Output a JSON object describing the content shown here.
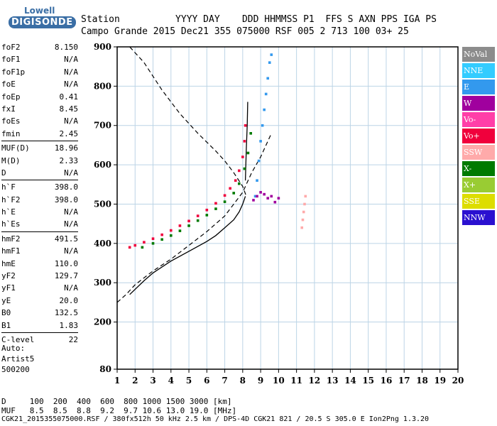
{
  "logo": {
    "line1": "Lowell",
    "line2": "DIGISONDE"
  },
  "header": {
    "row1": "Station          YYYY DAY    DDD HHMMSS P1  FFS S AXN PPS IGA PS",
    "row2": "Campo Grande 2015 Dec21 355 075000 RSF 005 2 713 100 03+ 25"
  },
  "params_group1": [
    {
      "k": "foF2",
      "v": "8.150"
    },
    {
      "k": "foF1",
      "v": "N/A"
    },
    {
      "k": "foF1p",
      "v": "N/A"
    },
    {
      "k": "foE",
      "v": "N/A"
    },
    {
      "k": "foEp",
      "v": "0.41"
    },
    {
      "k": "fxI",
      "v": "8.45"
    },
    {
      "k": "foEs",
      "v": "N/A"
    },
    {
      "k": "fmin",
      "v": "2.45"
    }
  ],
  "params_group2": [
    {
      "k": "MUF(D)",
      "v": "18.96"
    },
    {
      "k": "M(D)",
      "v": "2.33"
    },
    {
      "k": "D",
      "v": "N/A"
    }
  ],
  "params_group3": [
    {
      "k": "h`F",
      "v": "398.0"
    },
    {
      "k": "h`F2",
      "v": "398.0"
    },
    {
      "k": "h`E",
      "v": "N/A"
    },
    {
      "k": "h`Es",
      "v": "N/A"
    }
  ],
  "params_group4": [
    {
      "k": "hmF2",
      "v": "491.5"
    },
    {
      "k": "hmF1",
      "v": "N/A"
    },
    {
      "k": "hmE",
      "v": "110.0"
    },
    {
      "k": "yF2",
      "v": "129.7"
    },
    {
      "k": "yF1",
      "v": "N/A"
    },
    {
      "k": "yE",
      "v": "20.0"
    },
    {
      "k": "B0",
      "v": "132.5"
    },
    {
      "k": "B1",
      "v": "1.83"
    }
  ],
  "params_group5": [
    {
      "k": "C-level",
      "v": "22"
    }
  ],
  "auto": {
    "line1": "Auto:",
    "line2": "Artist5",
    "line3": "500200"
  },
  "legend": [
    {
      "label": "NoVal",
      "color": "#8c8c8c"
    },
    {
      "label": "NNE",
      "color": "#33ccff"
    },
    {
      "label": "E",
      "color": "#3399ee"
    },
    {
      "label": "W",
      "color": "#a0009e"
    },
    {
      "label": "Vo-",
      "color": "#ff3fa8"
    },
    {
      "label": "Vo+",
      "color": "#f0003c"
    },
    {
      "label": "SSW",
      "color": "#ffaaaa"
    },
    {
      "label": "X-",
      "color": "#007a00"
    },
    {
      "label": "X+",
      "color": "#99cc33"
    },
    {
      "label": "SSE",
      "color": "#dddd00"
    },
    {
      "label": "NNW",
      "color": "#2a10d0"
    }
  ],
  "footer": {
    "line1": "D     100  200  400  600  800 1000 1500 3000 [km]",
    "line2": "MUF   8.5  8.5  8.8  9.2  9.7 10.6 13.0 19.0 [MHz]",
    "line3": "CGK21_2015355075000.RSF / 380fx512h 50 kHz 2.5 km / DPS-4D CGK21 821 / 20.5 S 305.0 E Ion2Png 1.3.20"
  },
  "chart_data": {
    "type": "scatter",
    "xlim": [
      1,
      20
    ],
    "ylim": [
      80,
      900
    ],
    "x_ticks": [
      1,
      2,
      3,
      4,
      5,
      6,
      7,
      8,
      9,
      10,
      11,
      12,
      13,
      14,
      15,
      16,
      17,
      18,
      19,
      20
    ],
    "y_ticks": [
      80,
      200,
      300,
      400,
      500,
      600,
      700,
      800,
      900
    ],
    "grid": true,
    "series": [
      {
        "name": "Vo+",
        "color": "#f0003c",
        "x": [
          1.7,
          2.0,
          2.5,
          3.0,
          3.5,
          4.0,
          4.5,
          5.0,
          5.5,
          6.0,
          6.5,
          7.0,
          7.3,
          7.6,
          7.8,
          8.0,
          8.1,
          8.15
        ],
        "y": [
          390,
          395,
          403,
          412,
          422,
          433,
          445,
          457,
          470,
          485,
          502,
          522,
          540,
          560,
          585,
          620,
          660,
          700
        ]
      },
      {
        "name": "X-",
        "color": "#007a00",
        "x": [
          2.4,
          3.0,
          3.5,
          4.0,
          4.5,
          5.0,
          5.5,
          6.0,
          6.5,
          7.0,
          7.5,
          7.8,
          8.1,
          8.3,
          8.45
        ],
        "y": [
          390,
          400,
          410,
          420,
          432,
          445,
          458,
          472,
          488,
          506,
          528,
          552,
          590,
          630,
          680
        ]
      },
      {
        "name": "E",
        "color": "#3399ee",
        "x": [
          8.7,
          8.8,
          8.9,
          9.0,
          9.1,
          9.2,
          9.3,
          9.4,
          9.5,
          9.6
        ],
        "y": [
          520,
          560,
          610,
          660,
          700,
          740,
          780,
          820,
          860,
          880
        ]
      },
      {
        "name": "W",
        "color": "#a0009e",
        "x": [
          8.6,
          8.8,
          9.0,
          9.2,
          9.4,
          9.6,
          9.8,
          10.0
        ],
        "y": [
          510,
          520,
          530,
          525,
          515,
          520,
          505,
          515
        ]
      },
      {
        "name": "SSW",
        "color": "#ffaaaa",
        "x": [
          11.3,
          11.35,
          11.4,
          11.45,
          11.5
        ],
        "y": [
          440,
          460,
          480,
          500,
          520
        ]
      }
    ],
    "profile_curve": {
      "x": [
        1.7,
        2.5,
        3.0,
        4.0,
        5.0,
        6.0,
        6.5,
        7.0,
        7.5,
        7.8,
        8.0,
        8.15
      ],
      "y": [
        270,
        305,
        325,
        355,
        380,
        405,
        420,
        440,
        460,
        480,
        500,
        520
      ]
    },
    "profile_curve_upper": {
      "x": [
        8.15,
        8.2,
        8.25,
        8.28
      ],
      "y": [
        560,
        640,
        700,
        760
      ]
    },
    "dashed_curve": {
      "x": [
        1.0,
        1.5,
        2.0,
        3.0,
        4.0,
        5.0,
        6.0,
        7.0,
        7.5,
        8.0,
        8.3,
        8.5,
        9.0,
        9.6
      ],
      "y": [
        250,
        270,
        295,
        330,
        360,
        395,
        430,
        470,
        500,
        530,
        560,
        580,
        620,
        680
      ]
    },
    "dashed_curve_upper": {
      "x": [
        1.7,
        2.5,
        3.5,
        4.5,
        5.5,
        6.5,
        7.0,
        7.5,
        8.0,
        8.2
      ],
      "y": [
        900,
        860,
        790,
        730,
        680,
        635,
        610,
        580,
        545,
        520
      ]
    }
  }
}
